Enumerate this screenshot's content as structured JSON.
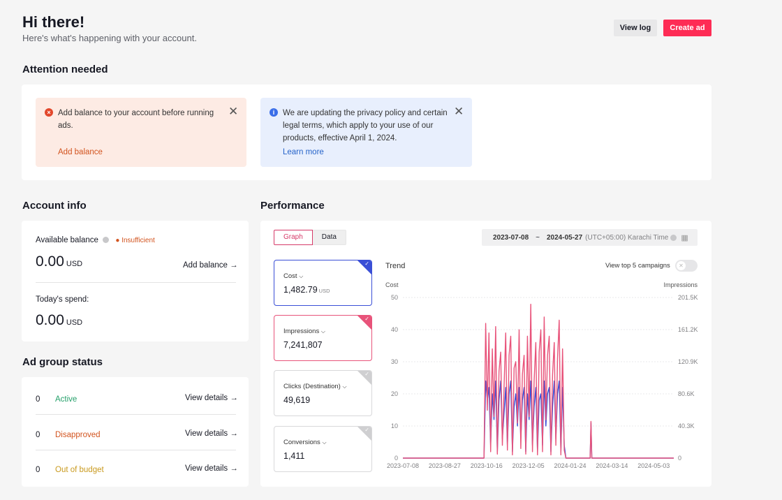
{
  "header": {
    "title": "Hi there!",
    "subtitle": "Here's what's happening with your account.",
    "view_log": "View log",
    "create_ad": "Create ad"
  },
  "attention": {
    "title": "Attention needed",
    "alerts": [
      {
        "type": "error",
        "message": "Add balance to your account before running ads.",
        "link": "Add balance"
      },
      {
        "type": "info",
        "message": "We are updating the privacy policy and certain legal terms, which apply to your use of our products, effective April 1, 2024.",
        "link": "Learn more"
      }
    ]
  },
  "account": {
    "title": "Account info",
    "balance_label": "Available balance",
    "status": "Insufficient",
    "balance_value": "0.00",
    "currency": "USD",
    "add_balance": "Add balance",
    "spend_label": "Today's spend:",
    "spend_value": "0.00"
  },
  "adgroup": {
    "title": "Ad group status",
    "rows": [
      {
        "count": "0",
        "status": "Active",
        "color": "#25a06a",
        "action": "View details"
      },
      {
        "count": "0",
        "status": "Disapproved",
        "color": "#d2531e",
        "action": "View details"
      },
      {
        "count": "0",
        "status": "Out of budget",
        "color": "#c99a1f",
        "action": "View details"
      }
    ]
  },
  "performance": {
    "title": "Performance",
    "tabs": [
      "Graph",
      "Data"
    ],
    "date_start": "2023-07-08",
    "date_sep": "~",
    "date_end": "2024-05-27",
    "timezone": "(UTC+05:00) Karachi Time",
    "metrics": [
      {
        "label": "Cost",
        "value": "1,482.79",
        "unit": "USD",
        "selected": true,
        "color": "#3a4fd6"
      },
      {
        "label": "Impressions",
        "value": "7,241,807",
        "unit": "",
        "selected": true,
        "color": "#e8537a"
      },
      {
        "label": "Clicks (Destination)",
        "value": "49,619",
        "unit": "",
        "selected": false,
        "color": "#cfcfd1"
      },
      {
        "label": "Conversions",
        "value": "1,411",
        "unit": "",
        "selected": false,
        "color": "#cfcfd1"
      }
    ],
    "trend_title": "Trend",
    "toggle_label": "View top 5 campaigns"
  },
  "chart_data": {
    "type": "line",
    "left_axis_label": "Cost",
    "right_axis_label": "Impressions",
    "left_ticks": [
      "50",
      "40",
      "30",
      "20",
      "10",
      "0"
    ],
    "right_ticks": [
      "201.5K",
      "161.2K",
      "120.9K",
      "80.6K",
      "40.3K",
      "0"
    ],
    "x_ticks": [
      "2023-07-08",
      "2023-08-27",
      "2023-10-16",
      "2023-12-05",
      "2024-01-24",
      "2024-03-14",
      "2024-05-03"
    ],
    "ylim_left": [
      0,
      50
    ],
    "ylim_right": [
      0,
      201500
    ],
    "series": [
      {
        "name": "Cost",
        "color": "#3a4fd6",
        "x": [
          "2023-07-08",
          "2023-10-13",
          "2023-10-15",
          "2023-10-17",
          "2023-10-19",
          "2023-10-21",
          "2023-10-23",
          "2023-10-25",
          "2023-10-27",
          "2023-10-29",
          "2023-10-31",
          "2023-11-02",
          "2023-11-04",
          "2023-11-06",
          "2023-11-08",
          "2023-11-10",
          "2023-11-12",
          "2023-11-14",
          "2023-11-16",
          "2023-11-18",
          "2023-11-20",
          "2023-11-22",
          "2023-11-24",
          "2023-11-26",
          "2023-11-28",
          "2023-11-30",
          "2023-12-02",
          "2023-12-04",
          "2023-12-06",
          "2023-12-08",
          "2023-12-10",
          "2023-12-12",
          "2023-12-14",
          "2023-12-16",
          "2023-12-18",
          "2023-12-20",
          "2023-12-22",
          "2023-12-24",
          "2023-12-26",
          "2023-12-28",
          "2023-12-30",
          "2024-01-01",
          "2024-01-03",
          "2024-01-05",
          "2024-01-07",
          "2024-01-09",
          "2024-01-11",
          "2024-01-13",
          "2024-01-15",
          "2024-01-17",
          "2024-01-19",
          "2024-01-21",
          "2024-02-17",
          "2024-02-18",
          "2024-02-19",
          "2024-05-27"
        ],
        "values": [
          0,
          0,
          24,
          18,
          22,
          4,
          20,
          12,
          24,
          2,
          18,
          24,
          6,
          14,
          22,
          4,
          20,
          24,
          2,
          16,
          20,
          10,
          22,
          6,
          18,
          22,
          2,
          20,
          12,
          24,
          4,
          16,
          22,
          2,
          18,
          20,
          4,
          24,
          10,
          20,
          22,
          2,
          16,
          24,
          6,
          20,
          24,
          2,
          22,
          4,
          0,
          0,
          0,
          11,
          0,
          0
        ]
      },
      {
        "name": "Impressions",
        "color": "#e8537a",
        "x": [
          "2023-07-08",
          "2023-10-13",
          "2023-10-15",
          "2023-10-17",
          "2023-10-19",
          "2023-10-21",
          "2023-10-23",
          "2023-10-25",
          "2023-10-27",
          "2023-10-29",
          "2023-10-31",
          "2023-11-02",
          "2023-11-04",
          "2023-11-06",
          "2023-11-08",
          "2023-11-10",
          "2023-11-12",
          "2023-11-14",
          "2023-11-16",
          "2023-11-18",
          "2023-11-20",
          "2023-11-22",
          "2023-11-24",
          "2023-11-26",
          "2023-11-28",
          "2023-11-30",
          "2023-12-02",
          "2023-12-04",
          "2023-12-06",
          "2023-12-08",
          "2023-12-10",
          "2023-12-12",
          "2023-12-14",
          "2023-12-16",
          "2023-12-18",
          "2023-12-20",
          "2023-12-22",
          "2023-12-24",
          "2023-12-26",
          "2023-12-28",
          "2023-12-30",
          "2024-01-01",
          "2024-01-03",
          "2024-01-05",
          "2024-01-07",
          "2024-01-09",
          "2024-01-11",
          "2024-01-13",
          "2024-01-15",
          "2024-01-17",
          "2024-01-19",
          "2024-01-21",
          "2024-02-17",
          "2024-02-18",
          "2024-02-19",
          "2024-05-27"
        ],
        "values": [
          0,
          0,
          169000,
          60000,
          157000,
          8000,
          137000,
          52000,
          165000,
          5000,
          109000,
          133000,
          16000,
          89000,
          157000,
          10000,
          129000,
          153000,
          4000,
          113000,
          121000,
          44000,
          161000,
          12000,
          105000,
          129000,
          5000,
          153000,
          52000,
          193000,
          8000,
          97000,
          145000,
          4000,
          133000,
          161000,
          8000,
          177000,
          48000,
          129000,
          153000,
          4000,
          105000,
          145000,
          16000,
          125000,
          173000,
          4000,
          137000,
          10000,
          0,
          0,
          0,
          46000,
          0,
          0
        ]
      }
    ]
  }
}
